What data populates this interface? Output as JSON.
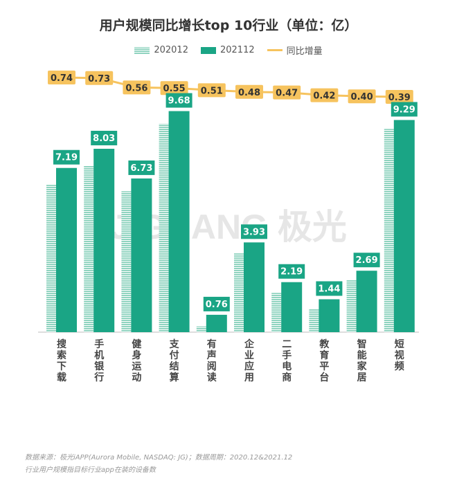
{
  "chart_data": {
    "type": "bar",
    "title": "用户规模同比增长top 10行业（单位：亿）",
    "legend": [
      "202012",
      "202112",
      "同比增量"
    ],
    "legend_position": "top",
    "categories": [
      "搜索下载",
      "手机银行",
      "健身运动",
      "支付结算",
      "有声阅读",
      "企业应用",
      "二手电商",
      "教育平台",
      "智能家居",
      "短视频"
    ],
    "series": [
      {
        "name": "202012",
        "values": [
          6.45,
          7.3,
          6.17,
          9.13,
          0.25,
          3.45,
          1.72,
          1.02,
          2.29,
          8.9
        ]
      },
      {
        "name": "202112",
        "values": [
          7.19,
          8.03,
          6.73,
          9.68,
          0.76,
          3.93,
          2.19,
          1.44,
          2.69,
          9.29
        ]
      },
      {
        "name": "同比增量",
        "type": "line",
        "values": [
          0.74,
          0.73,
          0.56,
          0.55,
          0.51,
          0.48,
          0.47,
          0.42,
          0.4,
          0.39
        ]
      }
    ],
    "ylim": [
      0,
      10
    ],
    "grid": false,
    "colors": {
      "202012": "#8fd3bf",
      "202112": "#1aa585",
      "同比增量": "#f6c35e"
    }
  },
  "watermark": "JIGUANG 极光",
  "source_note_1": "数据来源：极光iAPP(Aurora Mobile, NASDAQ: JG)；数据周期：2020.12&2021.12",
  "source_note_2": "行业用户规模指目标行业app在装的设备数"
}
